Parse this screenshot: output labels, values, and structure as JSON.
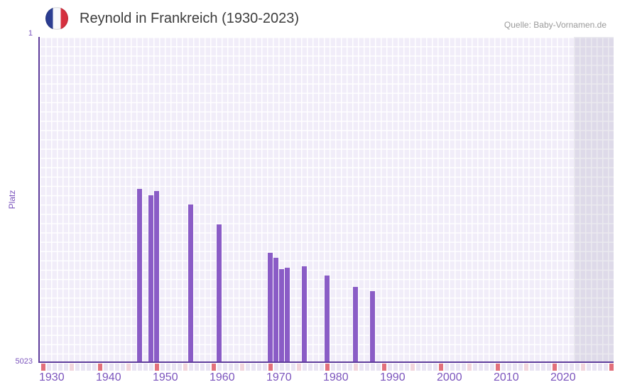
{
  "header": {
    "title": "Reynold in Frankreich (1930-2023)",
    "source": "Quelle: Baby-Vornamen.de",
    "flag": "france-flag-icon"
  },
  "colors": {
    "bar": "#8a5cc6",
    "axis": "#5e3c9b",
    "label_purple": "#7b54bd",
    "tick_decade": "#e2707b",
    "tick_half_decade": "#f2d5dc",
    "tick_default": "#e9e4f3",
    "plot_background": "#f1edf9",
    "gridline": "#ffffff",
    "no_data_overlay": "#dfdce9",
    "title_text": "#3d3d3d",
    "source_text": "#9a9a9a"
  },
  "chart_data": {
    "type": "bar",
    "title": "Reynold in Frankreich (1930-2023)",
    "xlabel": "",
    "ylabel": "Platz",
    "y_axis": {
      "top_label": "1",
      "bottom_label": "5023",
      "min": 1,
      "max": 5023,
      "inverted": true
    },
    "x_axis": {
      "start": 1930,
      "end": 2030,
      "tick_labels": [
        "1930",
        "1940",
        "1950",
        "1960",
        "1970",
        "1980",
        "1990",
        "2000",
        "2010",
        "2020"
      ],
      "decade_ticks": [
        1930,
        1940,
        1950,
        1960,
        1970,
        1980,
        1990,
        2000,
        2010,
        2020,
        2030
      ],
      "half_decade_ticks": [
        1935,
        1945,
        1955,
        1965,
        1975,
        1985,
        1995,
        2005,
        2015,
        2025
      ]
    },
    "no_data_region": {
      "from": 2024,
      "to": 2030
    },
    "points": [
      {
        "year": 1947,
        "rank": 2345
      },
      {
        "year": 1949,
        "rank": 2445
      },
      {
        "year": 1950,
        "rank": 2375
      },
      {
        "year": 1956,
        "rank": 2580
      },
      {
        "year": 1961,
        "rank": 2890
      },
      {
        "year": 1970,
        "rank": 3325
      },
      {
        "year": 1971,
        "rank": 3400
      },
      {
        "year": 1972,
        "rank": 3580
      },
      {
        "year": 1973,
        "rank": 3560
      },
      {
        "year": 1976,
        "rank": 3530
      },
      {
        "year": 1980,
        "rank": 3680
      },
      {
        "year": 1985,
        "rank": 3855
      },
      {
        "year": 1988,
        "rank": 3920
      }
    ]
  }
}
